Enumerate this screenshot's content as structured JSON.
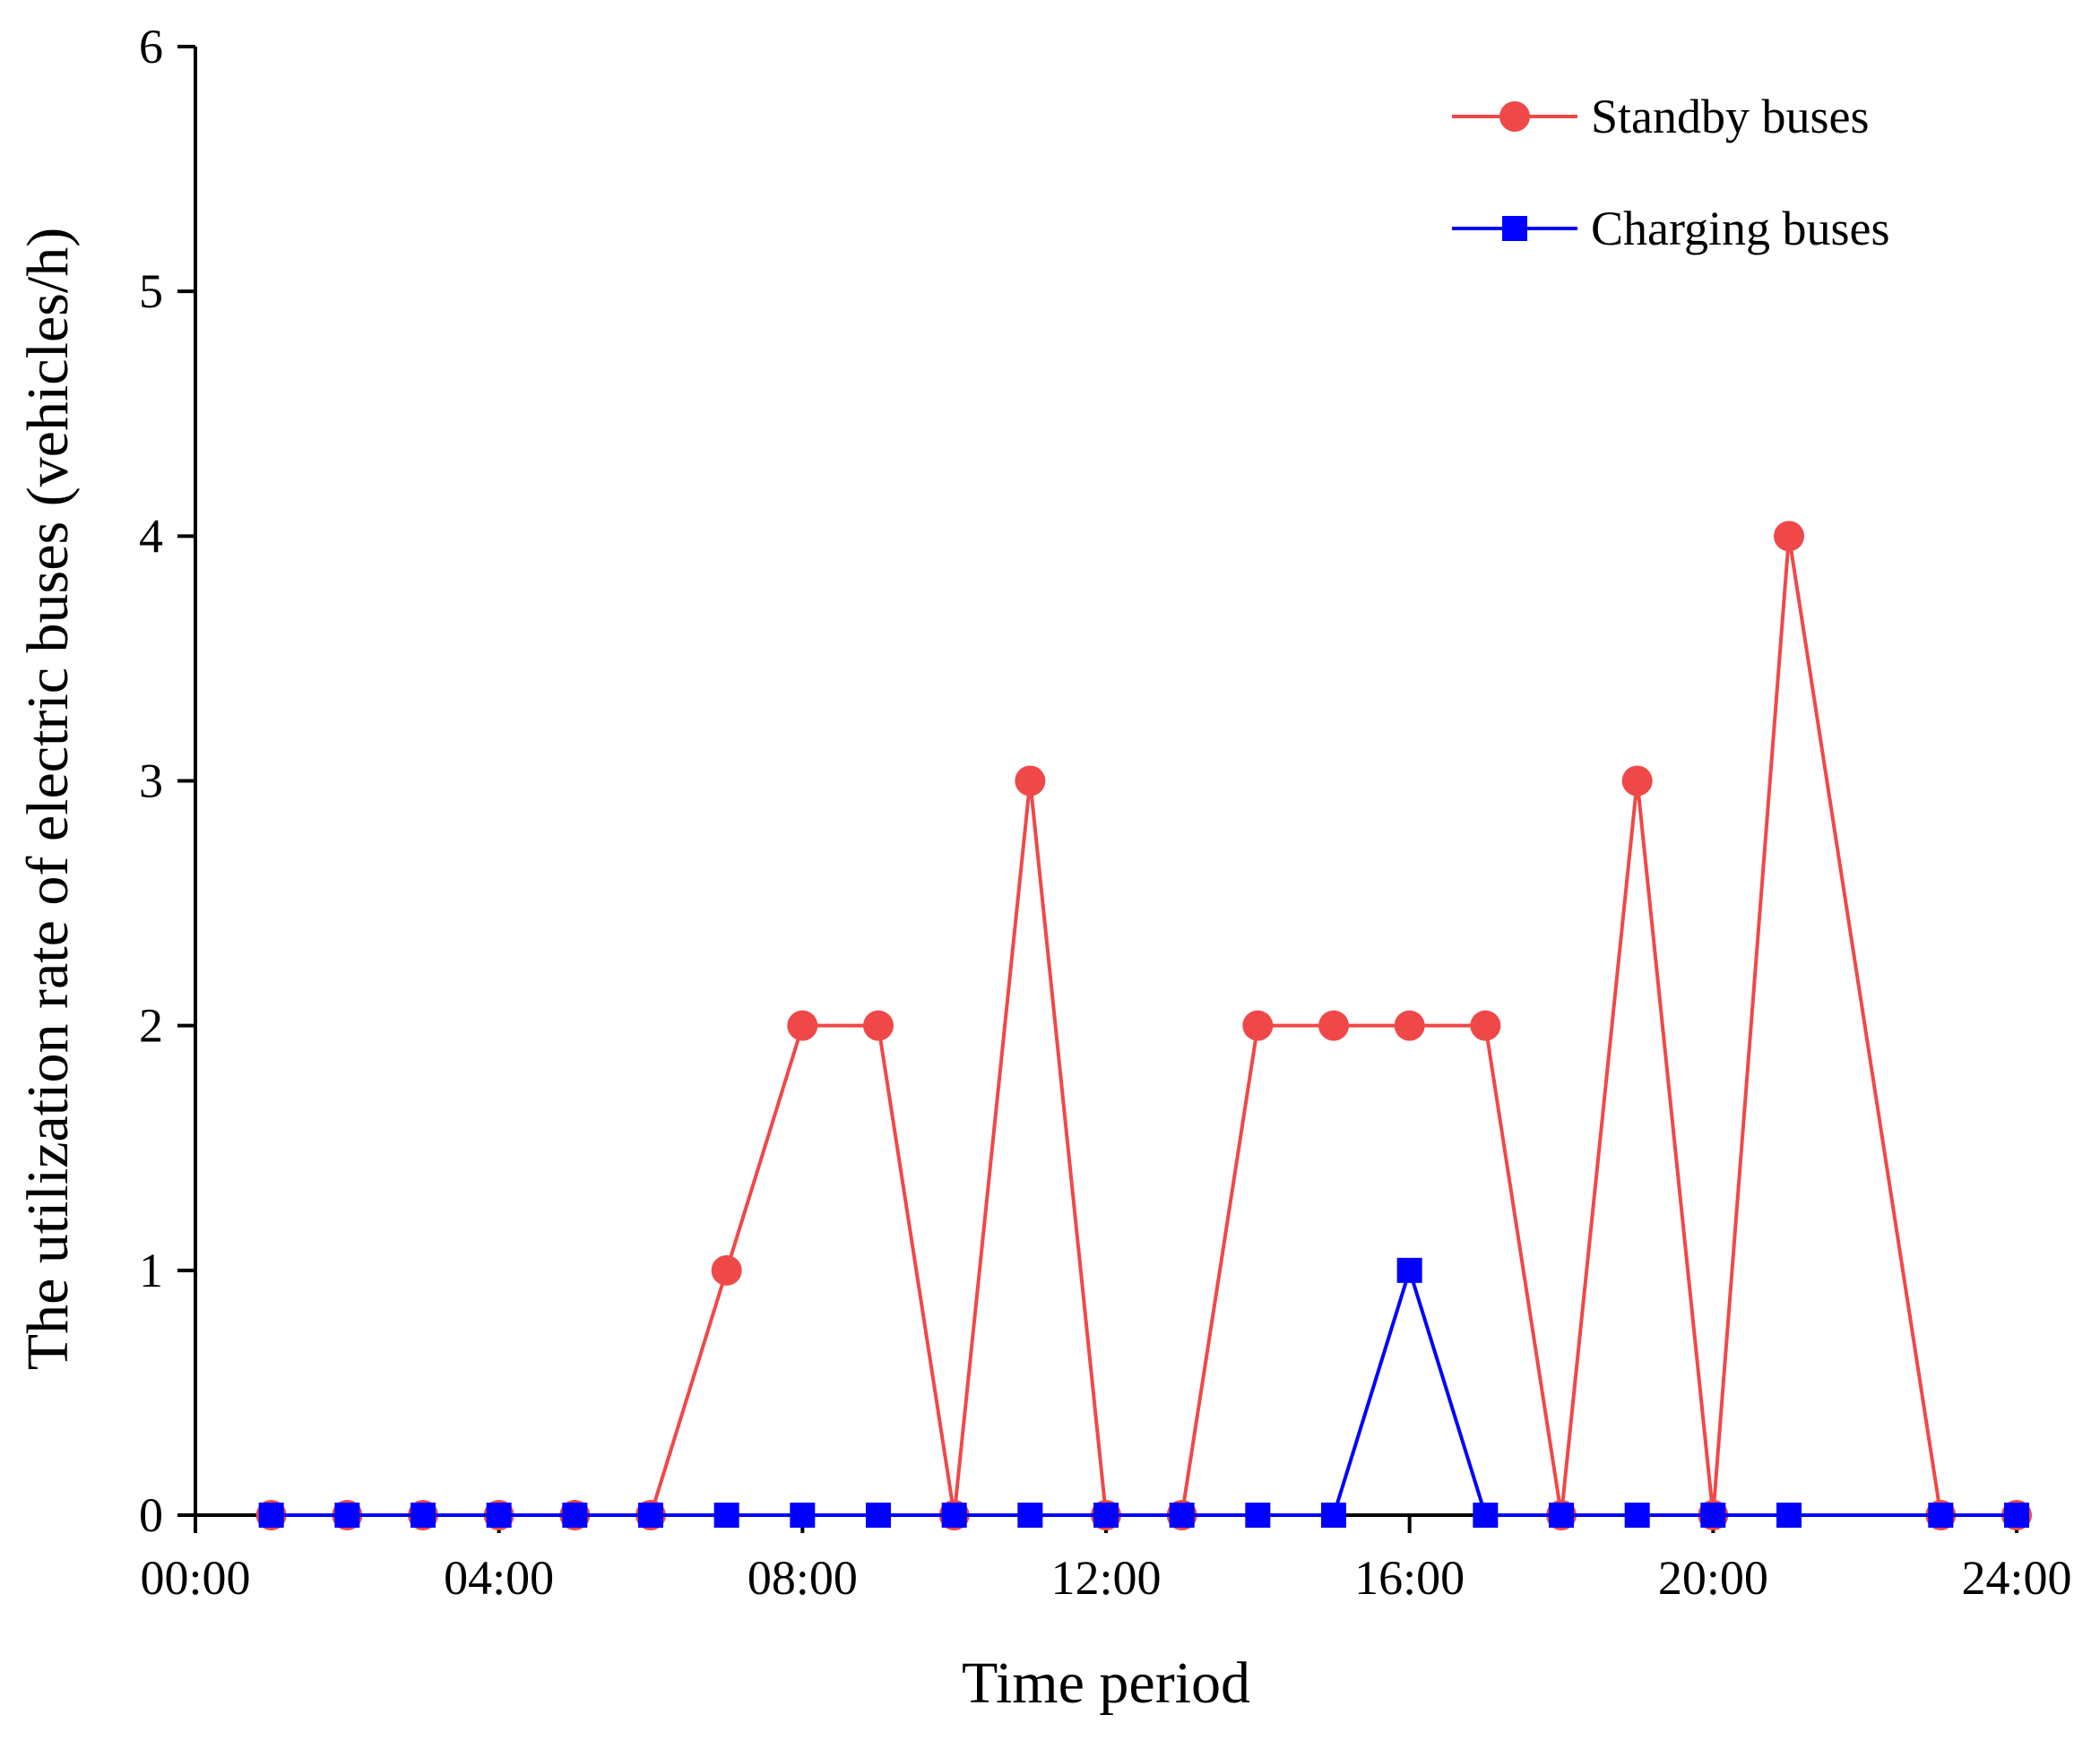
{
  "chart_data": {
    "type": "line",
    "title": "",
    "xlabel": "Time period",
    "ylabel": "The utilization rate of electric buses (vehicles/h)",
    "xlim": [
      0,
      24
    ],
    "ylim": [
      0,
      6
    ],
    "x_ticks": [
      0,
      4,
      8,
      12,
      16,
      20,
      24
    ],
    "x_tick_labels": [
      "00:00",
      "04:00",
      "08:00",
      "12:00",
      "16:00",
      "20:00",
      "24:00"
    ],
    "y_ticks": [
      0,
      1,
      2,
      3,
      4,
      5,
      6
    ],
    "y_tick_labels": [
      "0",
      "1",
      "2",
      "3",
      "4",
      "5",
      "6"
    ],
    "grid": false,
    "legend_position": "top-right",
    "x": [
      1,
      2,
      3,
      4,
      5,
      6,
      7,
      8,
      9,
      10,
      11,
      12,
      13,
      14,
      15,
      16,
      17,
      18,
      19,
      20,
      21,
      23,
      24
    ],
    "series": [
      {
        "name": "Standby buses",
        "color": "#f04848",
        "marker": "circle",
        "values": [
          0,
          0,
          0,
          0,
          0,
          0,
          1,
          2,
          2,
          0,
          3,
          0,
          0,
          2,
          2,
          2,
          2,
          0,
          3,
          0,
          4,
          0,
          0
        ]
      },
      {
        "name": "Charging buses",
        "color": "#0000ff",
        "marker": "square",
        "values": [
          0,
          0,
          0,
          0,
          0,
          0,
          0,
          0,
          0,
          0,
          0,
          0,
          0,
          0,
          0,
          1,
          0,
          0,
          0,
          0,
          0,
          0,
          0
        ]
      }
    ]
  }
}
